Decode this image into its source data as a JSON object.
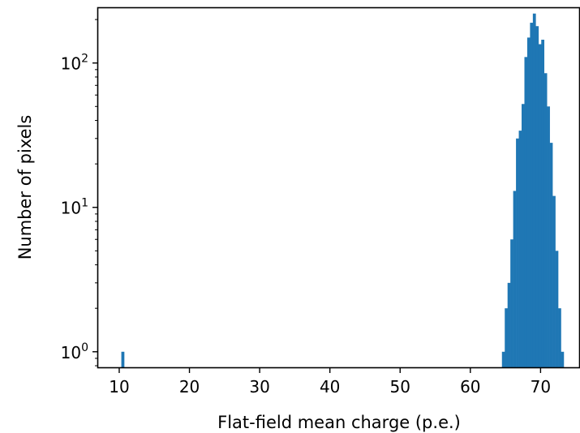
{
  "chart_data": {
    "type": "bar",
    "title": "",
    "xlabel": "Flat-field mean charge (p.e.)",
    "ylabel": "Number of pixels",
    "xlim": [
      7.0,
      75.5
    ],
    "ylim": [
      0.78,
      240
    ],
    "yscale": "log",
    "grid": false,
    "legend": "none",
    "bar_color": "#1f77b4",
    "bin_width": 0.4,
    "x_ticks": [
      {
        "value": 10,
        "label": "10"
      },
      {
        "value": 20,
        "label": "20"
      },
      {
        "value": 30,
        "label": "30"
      },
      {
        "value": 40,
        "label": "40"
      },
      {
        "value": 50,
        "label": "50"
      },
      {
        "value": 60,
        "label": "60"
      },
      {
        "value": 70,
        "label": "70"
      }
    ],
    "y_ticks": [
      {
        "value": 1,
        "base": "10",
        "exp": "0"
      },
      {
        "value": 10,
        "base": "10",
        "exp": "1"
      },
      {
        "value": 100,
        "base": "10",
        "exp": "2"
      }
    ],
    "bins": [
      {
        "x": 10.3,
        "count": 1
      },
      {
        "x": 64.5,
        "count": 1
      },
      {
        "x": 64.9,
        "count": 2
      },
      {
        "x": 65.3,
        "count": 3
      },
      {
        "x": 65.7,
        "count": 6
      },
      {
        "x": 66.1,
        "count": 13
      },
      {
        "x": 66.5,
        "count": 30
      },
      {
        "x": 66.9,
        "count": 34
      },
      {
        "x": 67.3,
        "count": 52
      },
      {
        "x": 67.7,
        "count": 110
      },
      {
        "x": 68.1,
        "count": 150
      },
      {
        "x": 68.5,
        "count": 190
      },
      {
        "x": 68.9,
        "count": 220
      },
      {
        "x": 69.3,
        "count": 180
      },
      {
        "x": 69.7,
        "count": 135
      },
      {
        "x": 70.1,
        "count": 145
      },
      {
        "x": 70.5,
        "count": 85
      },
      {
        "x": 70.9,
        "count": 50
      },
      {
        "x": 71.3,
        "count": 28
      },
      {
        "x": 71.7,
        "count": 12
      },
      {
        "x": 72.1,
        "count": 5
      },
      {
        "x": 72.5,
        "count": 2
      },
      {
        "x": 72.9,
        "count": 1
      }
    ]
  }
}
